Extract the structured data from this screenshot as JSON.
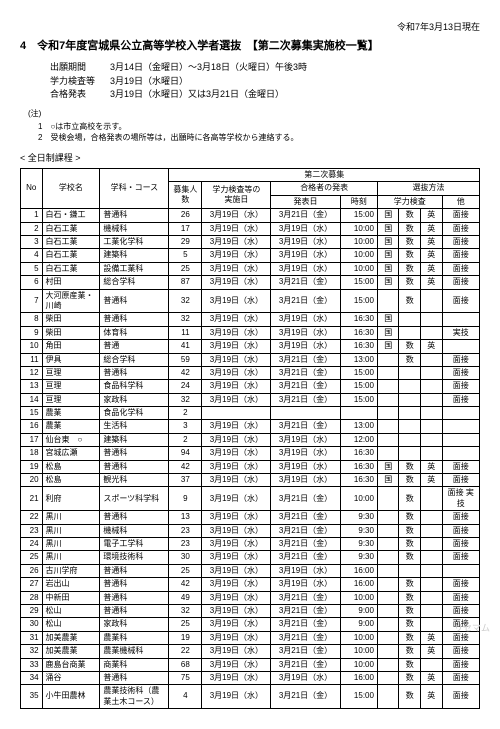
{
  "header": {
    "date": "令和7年3月13日現在",
    "title": "4　令和7年度宮城県公立高等学校入学者選抜　【第二次募集実施校一覧】"
  },
  "schedule": {
    "rows": [
      {
        "label": "出願期間",
        "value": "3月14日（金曜日）～3月18日（火曜日）午後3時"
      },
      {
        "label": "学力検査等",
        "value": "3月19日（水曜日）"
      },
      {
        "label": "合格発表",
        "value": "3月19日（水曜日）又は3月21日（金曜日）"
      }
    ]
  },
  "notes": {
    "title": "(注)",
    "items": [
      "1　○は市立高校を示す。",
      "2　受検会場，合格発表の場所等は，出願時に各高等学校から連絡する。"
    ]
  },
  "section": "< 全日制課程 >",
  "table": {
    "head": {
      "no": "No",
      "school": "学校名",
      "dept": "学科・コース",
      "group": "第二次募集",
      "capacity": "募集人数",
      "exam": "学力検査等の\n実施日",
      "result_group": "合格者の発表",
      "result_date": "発表日",
      "result_time": "時刻",
      "method_group": "選抜方法",
      "method_exam": "学力検査",
      "method_other": "他"
    },
    "rows": [
      {
        "n": 1,
        "s": "白石・鎌工",
        "d": "普通科",
        "c": 26,
        "e": "3月19日（水）",
        "rd": "3月21日（金）",
        "rt": "15:00",
        "m": [
          "国",
          "数",
          "英"
        ],
        "o": "面接"
      },
      {
        "n": 2,
        "s": "白石工業",
        "d": "機械科",
        "c": 17,
        "e": "3月19日（水）",
        "rd": "3月19日（水）",
        "rt": "10:00",
        "m": [
          "国",
          "数",
          "英"
        ],
        "o": "面接"
      },
      {
        "n": 3,
        "s": "白石工業",
        "d": "工業化学科",
        "c": 29,
        "e": "3月19日（水）",
        "rd": "3月19日（水）",
        "rt": "10:00",
        "m": [
          "国",
          "数",
          "英"
        ],
        "o": "面接"
      },
      {
        "n": 4,
        "s": "白石工業",
        "d": "建築科",
        "c": 5,
        "e": "3月19日（水）",
        "rd": "3月19日（水）",
        "rt": "10:00",
        "m": [
          "国",
          "数",
          "英"
        ],
        "o": "面接"
      },
      {
        "n": 5,
        "s": "白石工業",
        "d": "設備工業科",
        "c": 25,
        "e": "3月19日（水）",
        "rd": "3月19日（水）",
        "rt": "10:00",
        "m": [
          "国",
          "数",
          "英"
        ],
        "o": "面接"
      },
      {
        "n": 6,
        "s": "村田",
        "d": "総合学科",
        "c": 87,
        "e": "3月19日（水）",
        "rd": "3月21日（金）",
        "rt": "15:00",
        "m": [
          "国",
          "数",
          "英"
        ],
        "o": "面接"
      },
      {
        "n": 7,
        "s": "大河原産業・川崎",
        "d": "普通科",
        "c": 32,
        "e": "3月19日（水）",
        "rd": "3月21日（金）",
        "rt": "15:00",
        "m": [
          "",
          "数",
          ""
        ],
        "o": "面接"
      },
      {
        "n": 8,
        "s": "柴田",
        "d": "普通科",
        "c": 32,
        "e": "3月19日（水）",
        "rd": "3月19日（水）",
        "rt": "16:30",
        "m": [
          "国",
          "",
          ""
        ],
        "o": ""
      },
      {
        "n": 9,
        "s": "柴田",
        "d": "体育科",
        "c": 11,
        "e": "3月19日（水）",
        "rd": "3月19日（水）",
        "rt": "16:30",
        "m": [
          "国",
          "",
          ""
        ],
        "o": "実技"
      },
      {
        "n": 10,
        "s": "角田",
        "d": "普通",
        "c": 41,
        "e": "3月19日（水）",
        "rd": "3月19日（水）",
        "rt": "16:30",
        "m": [
          "国",
          "数",
          "英"
        ],
        "o": ""
      },
      {
        "n": 11,
        "s": "伊具",
        "d": "総合学科",
        "c": 59,
        "e": "3月19日（水）",
        "rd": "3月21日（金）",
        "rt": "13:00",
        "m": [
          "",
          "数",
          ""
        ],
        "o": "面接"
      },
      {
        "n": 12,
        "s": "亘理",
        "d": "普通科",
        "c": 42,
        "e": "3月19日（水）",
        "rd": "3月21日（金）",
        "rt": "15:00",
        "m": [
          "",
          "",
          ""
        ],
        "o": "面接"
      },
      {
        "n": 13,
        "s": "亘理",
        "d": "食品科学科",
        "c": 24,
        "e": "3月19日（水）",
        "rd": "3月21日（金）",
        "rt": "15:00",
        "m": [
          "",
          "",
          ""
        ],
        "o": "面接"
      },
      {
        "n": 14,
        "s": "亘理",
        "d": "家政科",
        "c": 32,
        "e": "3月19日（水）",
        "rd": "3月21日（金）",
        "rt": "15:00",
        "m": [
          "",
          "",
          ""
        ],
        "o": "面接"
      },
      {
        "n": 15,
        "s": "農業",
        "d": "食品化学科",
        "c": 2,
        "e": "",
        "rd": "",
        "rt": "",
        "m": [
          "",
          "",
          ""
        ],
        "o": ""
      },
      {
        "n": 16,
        "s": "農業",
        "d": "生活科",
        "c": 3,
        "e": "3月19日（水）",
        "rd": "3月21日（金）",
        "rt": "13:00",
        "m": [
          "",
          "",
          ""
        ],
        "o": ""
      },
      {
        "n": 17,
        "s": "仙台東　○",
        "d": "建築科",
        "c": 2,
        "e": "3月19日（水）",
        "rd": "3月19日（水）",
        "rt": "12:00",
        "m": [
          "",
          "",
          ""
        ],
        "o": ""
      },
      {
        "n": 18,
        "s": "宮城広瀬",
        "d": "普通科",
        "c": 94,
        "e": "3月19日（水）",
        "rd": "3月19日（水）",
        "rt": "16:30",
        "m": [
          "",
          "",
          ""
        ],
        "o": ""
      },
      {
        "n": 19,
        "s": "松島",
        "d": "普通科",
        "c": 42,
        "e": "3月19日（水）",
        "rd": "3月19日（水）",
        "rt": "16:30",
        "m": [
          "国",
          "数",
          "英"
        ],
        "o": "面接"
      },
      {
        "n": 20,
        "s": "松島",
        "d": "観光科",
        "c": 37,
        "e": "3月19日（水）",
        "rd": "3月19日（水）",
        "rt": "16:30",
        "m": [
          "国",
          "数",
          "英"
        ],
        "o": "面接"
      },
      {
        "n": 21,
        "s": "利府",
        "d": "スポーツ科学科",
        "c": 9,
        "e": "3月19日（水）",
        "rd": "3月21日（金）",
        "rt": "10:00",
        "m": [
          "",
          "数",
          ""
        ],
        "o": "面接 実技"
      },
      {
        "n": 22,
        "s": "黒川",
        "d": "普通科",
        "c": 13,
        "e": "3月19日（水）",
        "rd": "3月21日（金）",
        "rt": "9:30",
        "m": [
          "",
          "数",
          ""
        ],
        "o": "面接"
      },
      {
        "n": 23,
        "s": "黒川",
        "d": "機械科",
        "c": 23,
        "e": "3月19日（水）",
        "rd": "3月21日（金）",
        "rt": "9:30",
        "m": [
          "",
          "数",
          ""
        ],
        "o": "面接"
      },
      {
        "n": 24,
        "s": "黒川",
        "d": "電子工学科",
        "c": 23,
        "e": "3月19日（水）",
        "rd": "3月21日（金）",
        "rt": "9:30",
        "m": [
          "",
          "数",
          ""
        ],
        "o": "面接"
      },
      {
        "n": 25,
        "s": "黒川",
        "d": "環境技術科",
        "c": 30,
        "e": "3月19日（水）",
        "rd": "3月21日（金）",
        "rt": "9:30",
        "m": [
          "",
          "数",
          ""
        ],
        "o": "面接"
      },
      {
        "n": 26,
        "s": "古川学府",
        "d": "普通科",
        "c": 25,
        "e": "3月19日（水）",
        "rd": "3月19日（水）",
        "rt": "16:00",
        "m": [
          "",
          "",
          ""
        ],
        "o": ""
      },
      {
        "n": 27,
        "s": "岩出山",
        "d": "普通科",
        "c": 42,
        "e": "3月19日（水）",
        "rd": "3月19日（水）",
        "rt": "16:00",
        "m": [
          "",
          "数",
          ""
        ],
        "o": "面接"
      },
      {
        "n": 28,
        "s": "中新田",
        "d": "普通科",
        "c": 49,
        "e": "3月19日（水）",
        "rd": "3月21日（金）",
        "rt": "10:00",
        "m": [
          "",
          "数",
          ""
        ],
        "o": "面接"
      },
      {
        "n": 29,
        "s": "松山",
        "d": "普通科",
        "c": 32,
        "e": "3月19日（水）",
        "rd": "3月21日（金）",
        "rt": "9:00",
        "m": [
          "",
          "数",
          ""
        ],
        "o": "面接"
      },
      {
        "n": 30,
        "s": "松山",
        "d": "家政科",
        "c": 25,
        "e": "3月19日（水）",
        "rd": "3月21日（金）",
        "rt": "9:00",
        "m": [
          "",
          "数",
          ""
        ],
        "o": "面接"
      },
      {
        "n": 31,
        "s": "加美農業",
        "d": "農業科",
        "c": 19,
        "e": "3月19日（水）",
        "rd": "3月21日（金）",
        "rt": "10:00",
        "m": [
          "",
          "数",
          "英"
        ],
        "o": "面接"
      },
      {
        "n": 32,
        "s": "加美農業",
        "d": "農業機械科",
        "c": 22,
        "e": "3月19日（水）",
        "rd": "3月21日（金）",
        "rt": "10:00",
        "m": [
          "",
          "数",
          "英"
        ],
        "o": "面接"
      },
      {
        "n": 33,
        "s": "鹿島台商業",
        "d": "商業科",
        "c": 68,
        "e": "3月19日（水）",
        "rd": "3月21日（金）",
        "rt": "10:00",
        "m": [
          "",
          "数",
          ""
        ],
        "o": "面接"
      },
      {
        "n": 34,
        "s": "涌谷",
        "d": "普通科",
        "c": 75,
        "e": "3月19日（水）",
        "rd": "3月19日（水）",
        "rt": "16:00",
        "m": [
          "",
          "数",
          "英"
        ],
        "o": "面接"
      },
      {
        "n": 35,
        "s": "小牛田農林",
        "d": "農業技術科（農業土木コース）",
        "c": 4,
        "e": "3月19日（水）",
        "rd": "3月21日（金）",
        "rt": "15:00",
        "m": [
          "",
          "数",
          "英"
        ],
        "o": "面接"
      }
    ]
  },
  "watermark": "リセマム"
}
